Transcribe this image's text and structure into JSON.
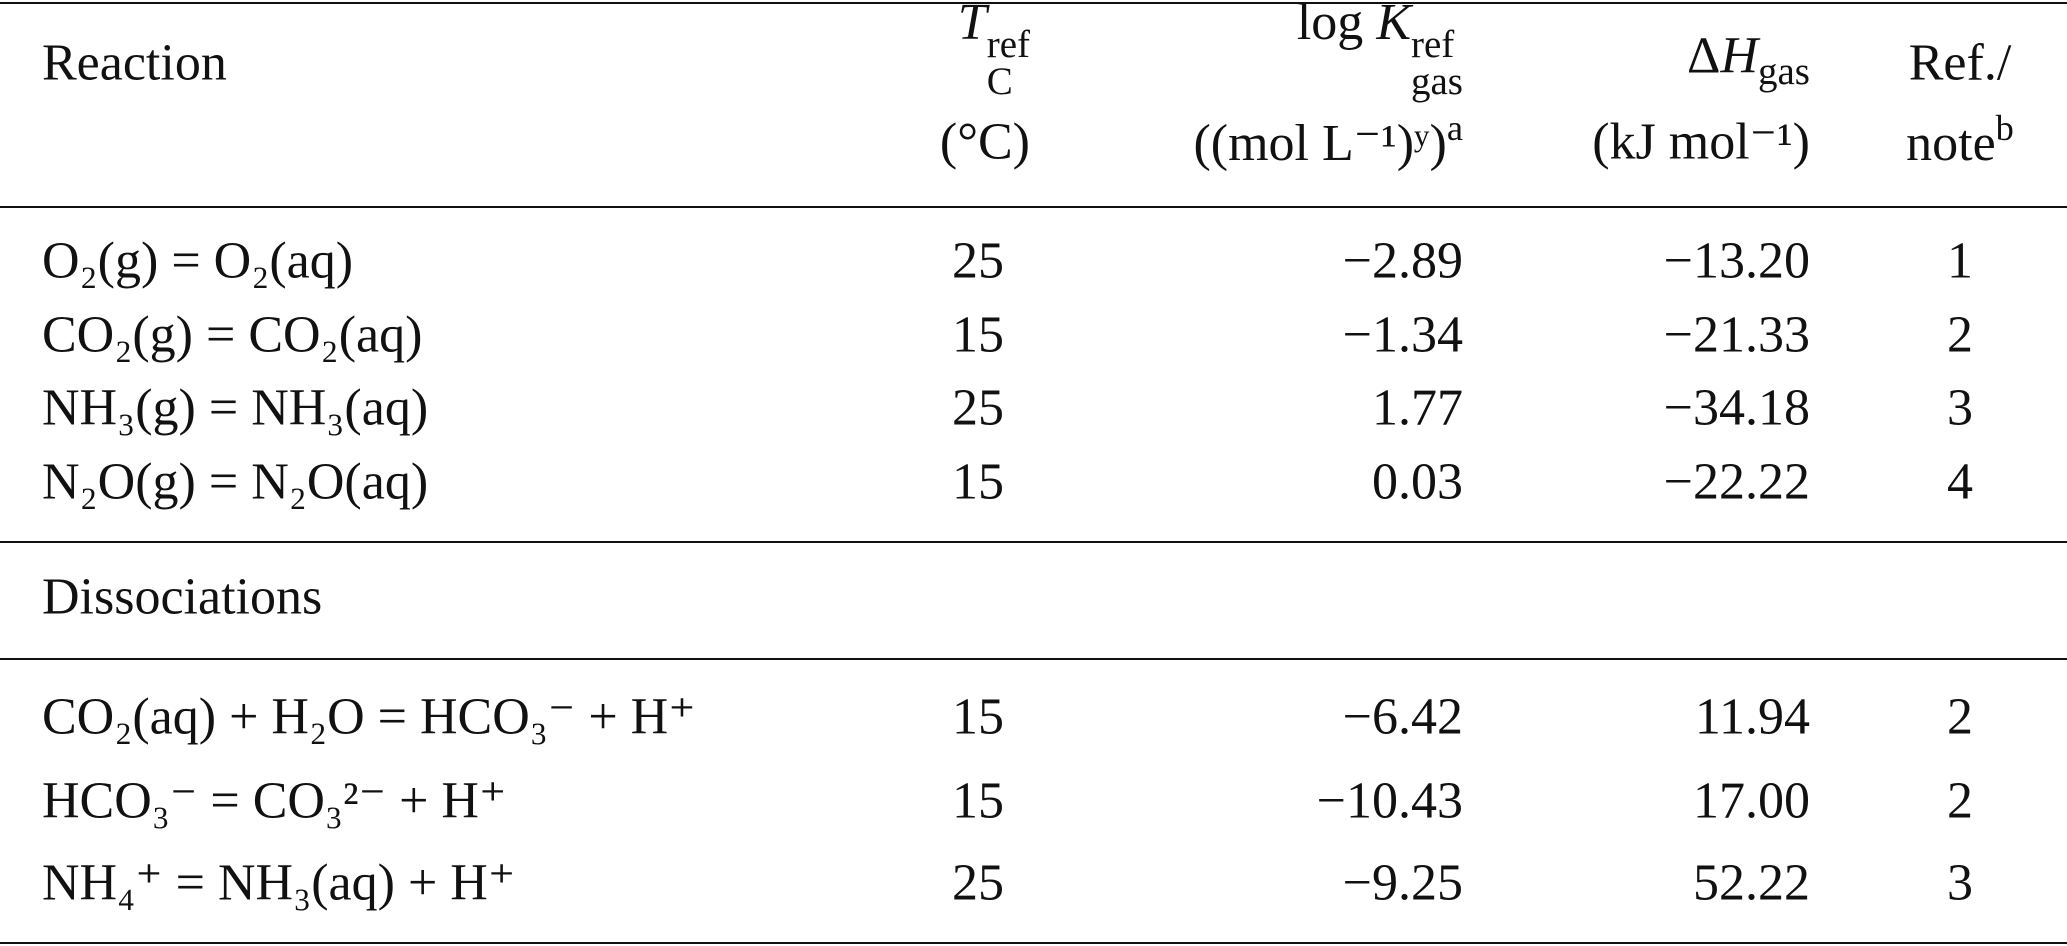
{
  "header": {
    "reaction": "Reaction",
    "temperature": {
      "symbol": "T",
      "sup": "ref",
      "sub": "C",
      "unit": "(°C)"
    },
    "log_k": {
      "prefix": "log ",
      "symbol": "K",
      "sup": "ref",
      "sub": "gas",
      "unit": "((mol L⁻¹)ʸ)",
      "note": "a"
    },
    "enthalpy": {
      "prefix": "Δ",
      "symbol": "H",
      "sub": "gas",
      "unit": "(kJ mol⁻¹)"
    },
    "ref": {
      "label": "Ref./",
      "unit": "note",
      "note": "b"
    }
  },
  "rows": [
    [
      "O₂(g) = O₂(aq)",
      "25",
      "−2.89",
      "−13.20",
      "1"
    ],
    [
      "CO₂(g) = CO₂(aq)",
      "15",
      "−1.34",
      "−21.33",
      "2"
    ],
    [
      "NH₃(g) = NH₃(aq)",
      "25",
      "1.77",
      "−34.18",
      "3"
    ],
    [
      "N₂O(g) = N₂O(aq)",
      "15",
      "0.03",
      "−22.22",
      "4"
    ]
  ],
  "section_label": "Dissociations",
  "dissociation_rows": [
    [
      "CO₂(aq) + H₂O = HCO₃⁻ + H⁺",
      "15",
      "−6.42",
      "11.94",
      "2"
    ],
    [
      "HCO₃⁻ = CO₃²⁻ + H⁺",
      "15",
      "−10.43",
      "17.00",
      "2"
    ],
    [
      "NH₄⁺ = NH₃(aq) + H⁺",
      "25",
      "−9.25",
      "52.22",
      "3"
    ]
  ]
}
